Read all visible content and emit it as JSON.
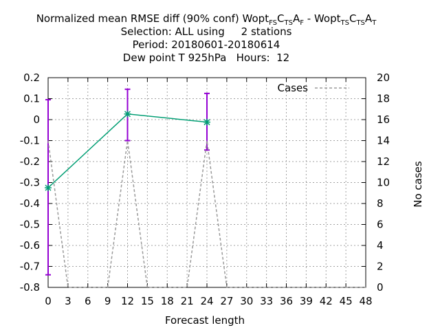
{
  "chart_data": {
    "type": "line",
    "title": {
      "line1": {
        "prefix": "Normalized mean RMSE diff (90% conf) Wopt",
        "sub1": "FS",
        "mid1": "C",
        "sub2": "TS",
        "mid2": "A",
        "sub3": "F",
        "middle": " - Wopt",
        "sub4": "TS",
        "mid3": "C",
        "sub5": "TS",
        "mid4": "A",
        "sub6": "T"
      },
      "line2": "Selection: ALL using     2 stations",
      "line3": "Period: 20180601-20180614",
      "line4": "Dew point T 925hPa   Hours:  12"
    },
    "xlabel": "Forecast length",
    "ylabel": "",
    "y2label": "No cases",
    "xlim": [
      0,
      48
    ],
    "ylim": [
      -0.8,
      0.2
    ],
    "y2lim": [
      0,
      20
    ],
    "xticks": [
      0,
      3,
      6,
      9,
      12,
      15,
      18,
      21,
      24,
      27,
      30,
      33,
      36,
      39,
      42,
      45,
      48
    ],
    "yticks": [
      -0.8,
      -0.7,
      -0.6,
      -0.5,
      -0.4,
      -0.3,
      -0.2,
      -0.1,
      0,
      0.1,
      0.2
    ],
    "y2ticks": [
      0,
      2,
      4,
      6,
      8,
      10,
      12,
      14,
      16,
      18,
      20
    ],
    "grid": true,
    "legend": {
      "position": "top-right",
      "entries": [
        "Cases"
      ]
    },
    "series": [
      {
        "type": "line",
        "axis": "y",
        "color": "#009e73",
        "x": [
          0,
          12,
          24
        ],
        "y": [
          -0.325,
          0.027,
          -0.012
        ],
        "err_low": [
          -0.74,
          -0.1,
          -0.145
        ],
        "err_high": [
          0.095,
          0.145,
          0.125
        ],
        "err_color": "#9400d3"
      },
      {
        "name": "Cases",
        "type": "line",
        "axis": "y2",
        "color": "#999999",
        "dashed": true,
        "x": [
          0,
          3,
          9,
          12,
          15,
          21,
          24,
          27,
          48
        ],
        "y": [
          14,
          0,
          0,
          14,
          0,
          0,
          14,
          0,
          0
        ]
      }
    ]
  }
}
